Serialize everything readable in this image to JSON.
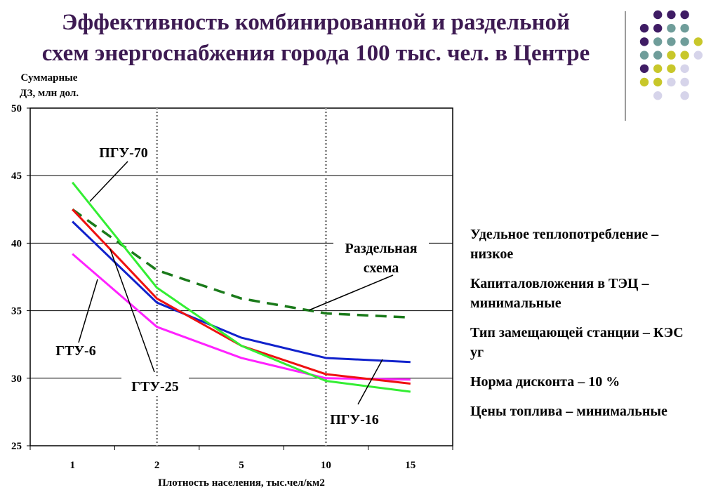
{
  "title": {
    "line1": "Эффективность комбинированной и раздельной",
    "line2": "схем энергоснабжения города 100 тыс. чел. в Центре"
  },
  "colors": {
    "title": "#3d1a52",
    "dots_purple": "#3f1c64",
    "dots_teal": "#6f9d9a",
    "dots_yellow": "#c8c72a",
    "dots_lavender": "#d6d4ea"
  },
  "chart_data": {
    "type": "line",
    "ylabel_line1": "Суммарные",
    "ylabel_line2": "ДЗ, млн дол.",
    "xlabel": "Плотность населения, тыс.чел/км2",
    "categories": [
      "1",
      "2",
      "5",
      "10",
      "15"
    ],
    "ylim": [
      25,
      50
    ],
    "yticks": [
      25,
      30,
      35,
      40,
      45,
      50
    ],
    "grid": "horizontal",
    "vlines_dotted_at": [
      "2",
      "10"
    ],
    "series": [
      {
        "name": "ПГУ-70",
        "color": "#33ee33",
        "style": "solid",
        "values": [
          44.5,
          36.7,
          32.4,
          29.8,
          29.0
        ]
      },
      {
        "name": "ГТУ-25",
        "color": "#ee1111",
        "style": "solid",
        "values": [
          42.5,
          35.9,
          32.4,
          30.3,
          29.6
        ]
      },
      {
        "name": "ГТУ-6",
        "color": "#ff22ff",
        "style": "solid",
        "values": [
          39.2,
          33.8,
          31.5,
          30.0,
          29.9
        ]
      },
      {
        "name": "ПГУ-16",
        "color": "#1122cc",
        "style": "solid",
        "values": [
          41.6,
          35.6,
          33.0,
          31.5,
          31.2
        ]
      },
      {
        "name": "Раздельная схема",
        "name_line1": "Раздельная",
        "name_line2": "схема",
        "color": "#1a7a1a",
        "style": "dashed",
        "values": [
          42.5,
          38.0,
          35.9,
          34.8,
          34.5
        ]
      }
    ]
  },
  "notes": [
    "Удельное теплопотребление – низкое",
    "Капиталовложения в ТЭЦ – минимальные",
    "Тип замещающей станции – КЭС уг",
    "Норма дисконта – 10 %",
    "Цены топлива – минимальные"
  ]
}
